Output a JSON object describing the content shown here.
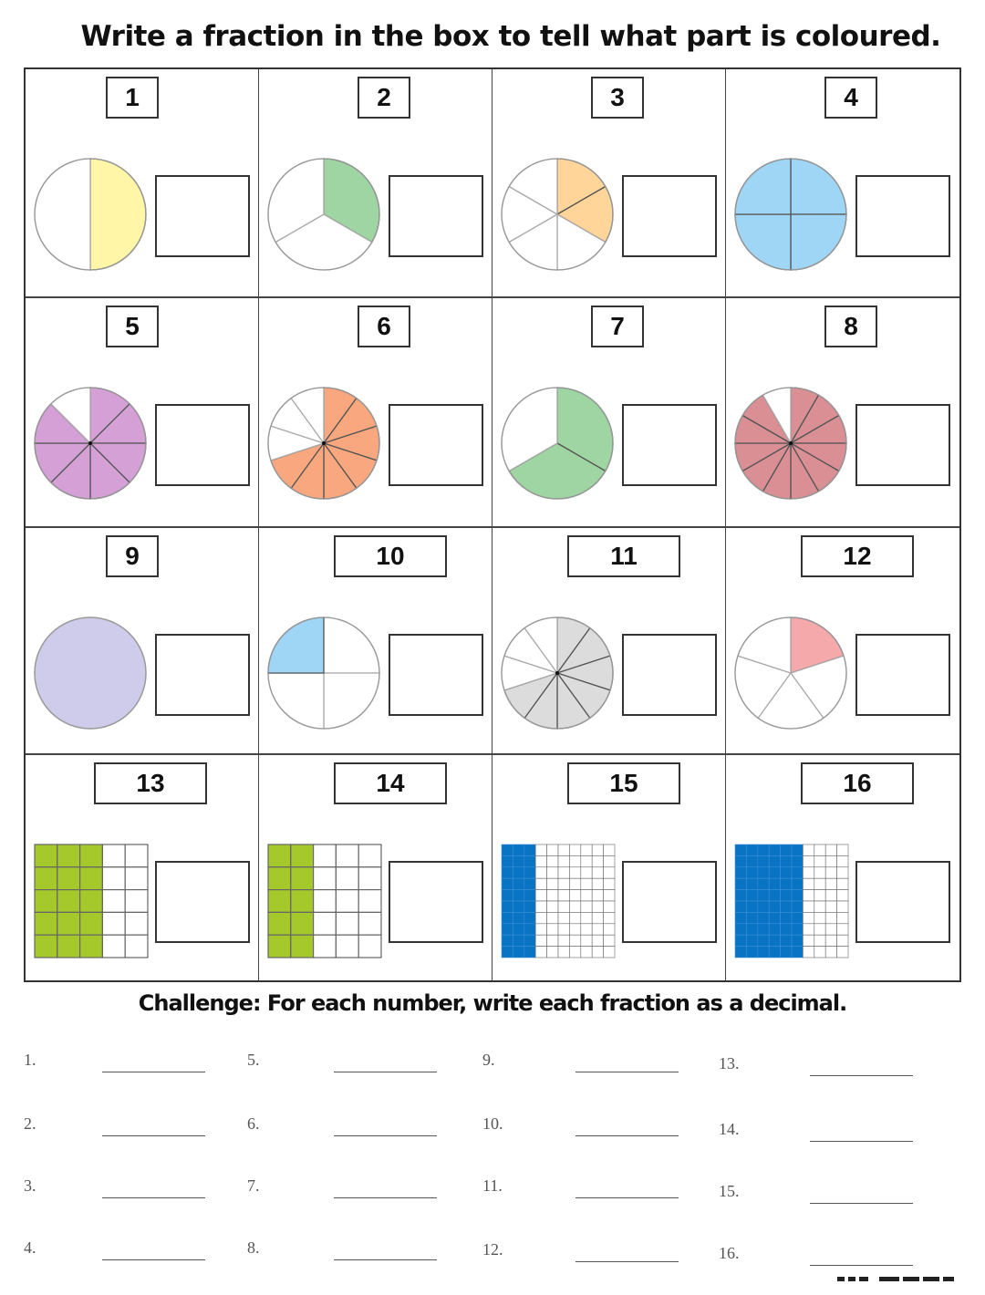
{
  "title": "Write a fraction in the box to tell what part is coloured.",
  "problems": [
    {
      "number": "1",
      "shape": "circle",
      "parts": 2,
      "colored": 1,
      "start": 0,
      "color": "#fff6a8"
    },
    {
      "number": "2",
      "shape": "circle",
      "parts": 3,
      "colored": 1,
      "start": 0,
      "color": "#9fd4a3"
    },
    {
      "number": "3",
      "shape": "circle",
      "parts": 6,
      "colored": 2,
      "start": 0,
      "color": "#ffd59a"
    },
    {
      "number": "4",
      "shape": "circle",
      "parts": 4,
      "colored": 4,
      "start": 0,
      "color": "#9fd6f5"
    },
    {
      "number": "5",
      "shape": "circle",
      "parts": 8,
      "colored": 7,
      "start": 0,
      "color": "#d4a0d6"
    },
    {
      "number": "6",
      "shape": "circle",
      "parts": 10,
      "colored": 7,
      "start": 0,
      "color": "#f9a77f"
    },
    {
      "number": "7",
      "shape": "circle",
      "parts": 3,
      "colored": 2,
      "start": 0,
      "color": "#9fd4a3"
    },
    {
      "number": "8",
      "shape": "circle",
      "parts": 12,
      "colored": 11,
      "start": 0,
      "color": "#d98f93"
    },
    {
      "number": "9",
      "shape": "circle",
      "parts": 1,
      "colored": 1,
      "start": 0,
      "color": "#cfcbeb"
    },
    {
      "number": "10",
      "shape": "circle",
      "parts": 4,
      "colored": 1,
      "start": 3,
      "color": "#9fd6f5"
    },
    {
      "number": "11",
      "shape": "circle",
      "parts": 10,
      "colored": 7,
      "start": 0,
      "color": "#dcdcdc"
    },
    {
      "number": "12",
      "shape": "circle",
      "parts": 5,
      "colored": 1,
      "start": 0,
      "color": "#f5a9ab"
    },
    {
      "number": "13",
      "shape": "grid",
      "cols": 5,
      "rows": 5,
      "colored_cols": 3,
      "color": "#a5c82a"
    },
    {
      "number": "14",
      "shape": "grid",
      "cols": 5,
      "rows": 5,
      "colored_cols": 2,
      "color": "#a5c82a"
    },
    {
      "number": "15",
      "shape": "grid",
      "cols": 10,
      "rows": 10,
      "colored_cols": 3,
      "color": "#0a74c4"
    },
    {
      "number": "16",
      "shape": "grid",
      "cols": 10,
      "rows": 10,
      "colored_cols": 6,
      "color": "#0a74c4"
    }
  ],
  "challenge": {
    "title": "Challenge: For each number, write each fraction as a decimal.",
    "labels": [
      "1.",
      "2.",
      "3.",
      "4.",
      "5.",
      "6.",
      "7.",
      "8.",
      "9.",
      "10.",
      "11.",
      "12.",
      "13.",
      "14.",
      "15.",
      "16."
    ]
  }
}
